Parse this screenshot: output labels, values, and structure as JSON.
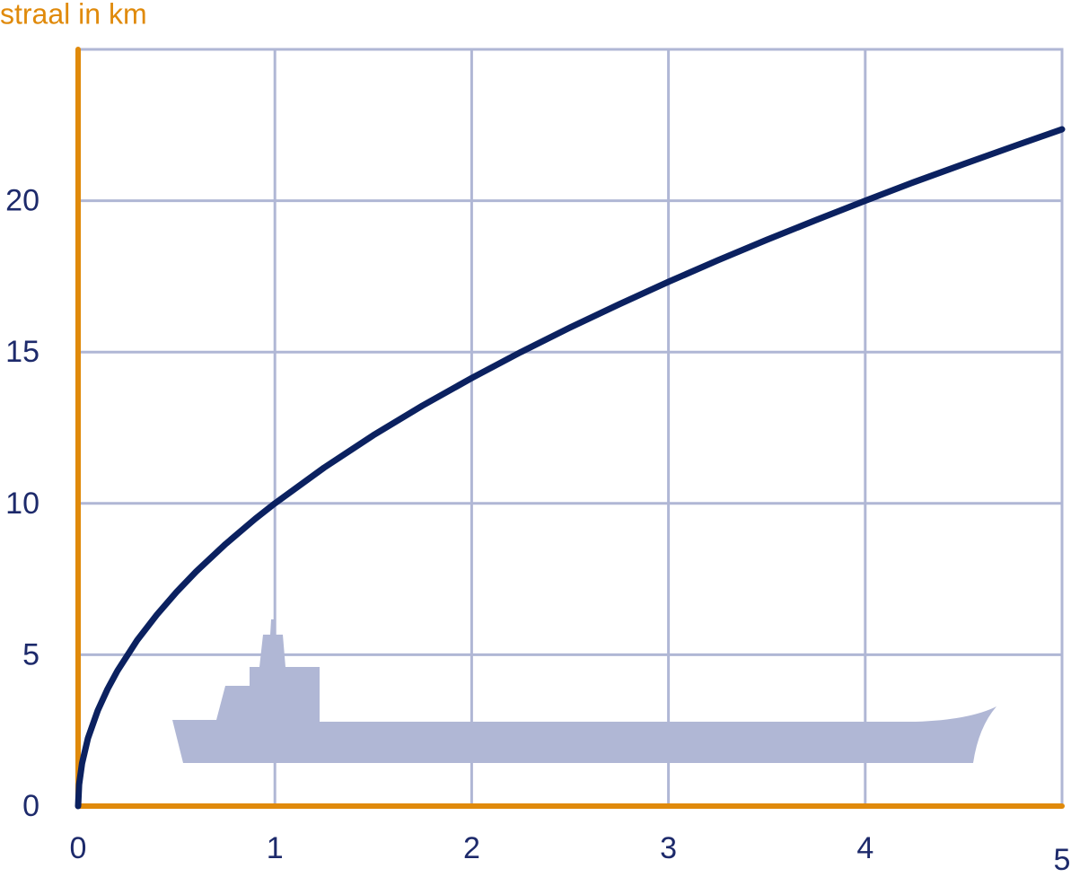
{
  "chart_data": {
    "type": "line",
    "y_label": "straal in km",
    "x": [
      0,
      0.005,
      0.02,
      0.05,
      0.1,
      0.15,
      0.2,
      0.3,
      0.4,
      0.5,
      0.6,
      0.75,
      0.9,
      1,
      1.25,
      1.5,
      1.75,
      2,
      2.25,
      2.5,
      2.75,
      3,
      3.25,
      3.5,
      3.75,
      4,
      4.25,
      4.5,
      4.75,
      5
    ],
    "series": [
      {
        "color": "#0b2160",
        "values": [
          0,
          0.71,
          1.41,
          2.24,
          3.16,
          3.87,
          4.47,
          5.48,
          6.32,
          7.07,
          7.75,
          8.66,
          9.49,
          10,
          11.18,
          12.25,
          13.23,
          14.14,
          15,
          15.81,
          16.58,
          17.32,
          18.03,
          18.71,
          19.36,
          20,
          20.62,
          21.21,
          21.79,
          22.36
        ]
      }
    ],
    "xlim": [
      0,
      5
    ],
    "ylim": [
      0,
      25
    ],
    "xticks": [
      0,
      1,
      2,
      3,
      4,
      5
    ],
    "yticks": [
      0,
      5,
      10,
      15,
      20
    ],
    "grid": true,
    "axis_color": "#e08a0b",
    "grid_color": "#b0b7d5"
  }
}
